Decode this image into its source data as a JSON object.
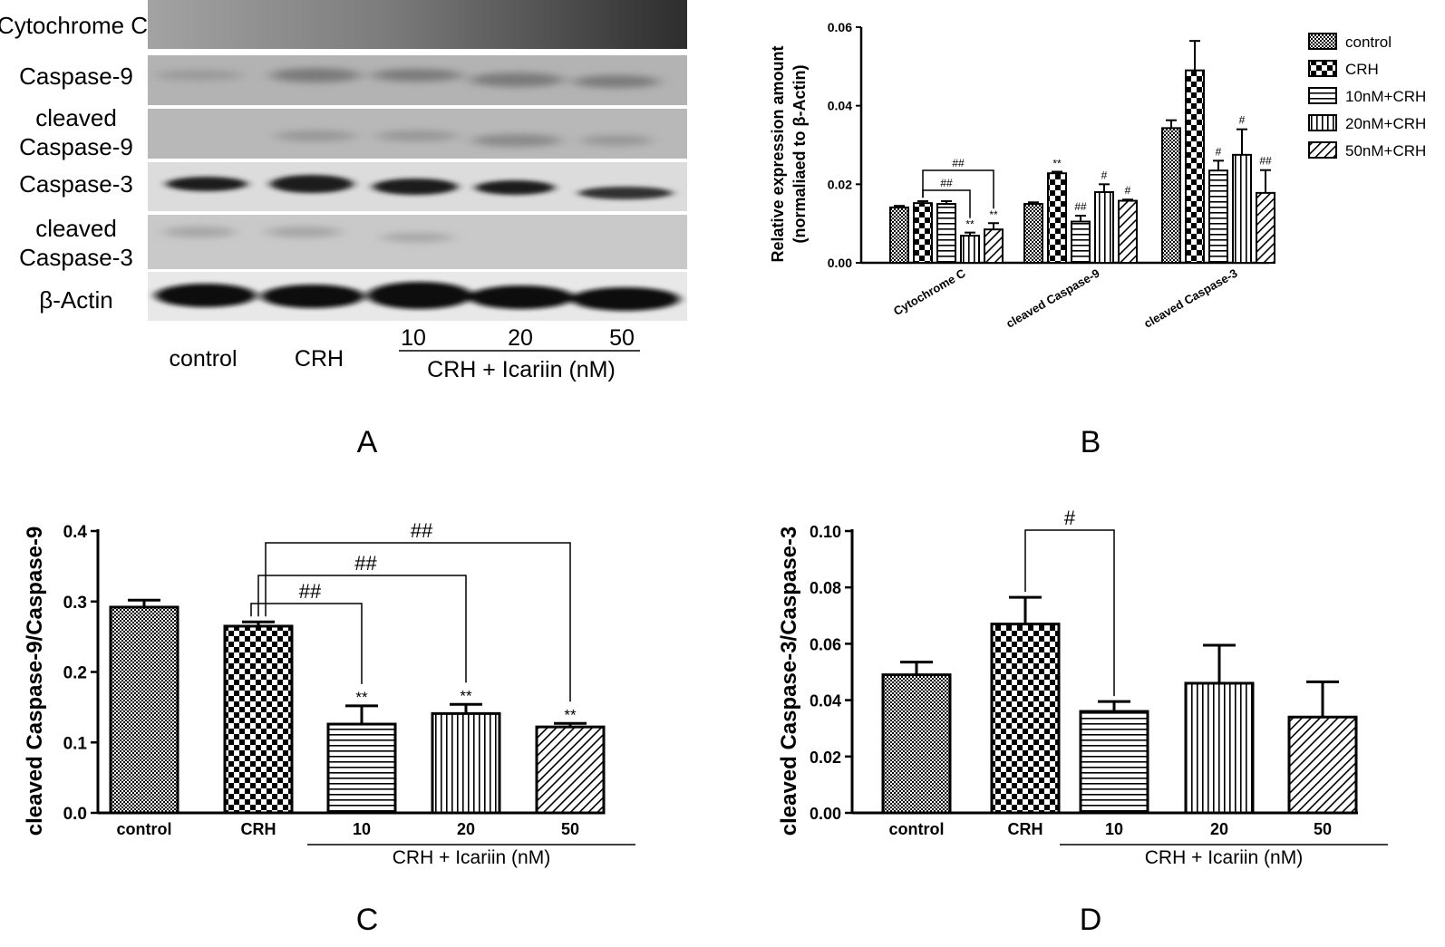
{
  "panel_letters": {
    "a": "A",
    "b": "B",
    "c": "C",
    "d": "D"
  },
  "blot": {
    "rows": [
      {
        "label_lines": [
          "Cytochrome C"
        ]
      },
      {
        "label_lines": [
          "Caspase-9"
        ]
      },
      {
        "label_lines": [
          "cleaved",
          "Caspase-9"
        ]
      },
      {
        "label_lines": [
          "Caspase-3"
        ]
      },
      {
        "label_lines": [
          "cleaved",
          "Caspase-3"
        ]
      },
      {
        "label_lines": [
          "β-Actin"
        ]
      }
    ],
    "lanes": [
      "control",
      "CRH",
      "10",
      "20",
      "50"
    ],
    "treatment_label": "CRH + Icariin (nM)"
  },
  "chart_data": [
    {
      "panel": "B",
      "type": "bar",
      "ylabel_lines": [
        "Relative expression amount",
        "(normaliaed to β-Actin)"
      ],
      "ylim": [
        0,
        0.06
      ],
      "yticks": [
        "0.00",
        "0.02",
        "0.04",
        "0.06"
      ],
      "categories": [
        "Cytochrome C",
        "cleaved Caspase-9",
        "cleaved Caspase-3"
      ],
      "series": [
        {
          "name": "control",
          "pattern": "fine-check",
          "values": [
            0.0141,
            0.015,
            0.0343
          ],
          "errors": [
            0.0004,
            0.0004,
            0.002
          ]
        },
        {
          "name": "CRH",
          "pattern": "coarse-check",
          "values": [
            0.0152,
            0.0228,
            0.049
          ],
          "errors": [
            0.0005,
            0.0004,
            0.0075
          ]
        },
        {
          "name": "10nM+CRH",
          "pattern": "hstripe",
          "values": [
            0.015,
            0.0105,
            0.0235
          ],
          "errors": [
            0.0007,
            0.0015,
            0.0025
          ]
        },
        {
          "name": "20nM+CRH",
          "pattern": "vstripe",
          "values": [
            0.0069,
            0.018,
            0.0275
          ],
          "errors": [
            0.0008,
            0.002,
            0.0065
          ]
        },
        {
          "name": "50nM+CRH",
          "pattern": "diag",
          "values": [
            0.0085,
            0.0158,
            0.0178
          ],
          "errors": [
            0.0016,
            0.0003,
            0.0058
          ]
        }
      ],
      "annotations": {
        "asterisks": [
          "**",
          "**",
          "**"
        ],
        "hashes": [
          "##",
          "##",
          "##",
          "#",
          "#",
          "#",
          "#",
          "##"
        ]
      }
    },
    {
      "panel": "C",
      "type": "bar",
      "ylabel": "cleaved Caspase-9/Caspase-9",
      "ylim": [
        0,
        0.4
      ],
      "yticks": [
        "0.0",
        "0.1",
        "0.2",
        "0.3",
        "0.4"
      ],
      "categories": [
        "control",
        "CRH",
        "10",
        "20",
        "50"
      ],
      "patterns": [
        "fine-check",
        "coarse-check",
        "hstripe",
        "vstripe",
        "diag"
      ],
      "values": [
        0.292,
        0.265,
        0.126,
        0.141,
        0.122
      ],
      "errors": [
        0.01,
        0.006,
        0.026,
        0.013,
        0.005
      ],
      "asterisks": [
        "",
        "",
        "**",
        "**",
        "**"
      ],
      "brackets": [
        {
          "label": "##",
          "from": 1,
          "to": 2
        },
        {
          "label": "##",
          "from": 1,
          "to": 3
        },
        {
          "label": "##",
          "from": 1,
          "to": 4
        }
      ],
      "xgroup_label": "CRH + Icariin (nM)"
    },
    {
      "panel": "D",
      "type": "bar",
      "ylabel": "cleaved Caspase-3/Caspase-3",
      "ylim": [
        0,
        0.1
      ],
      "yticks": [
        "0.00",
        "0.02",
        "0.04",
        "0.06",
        "0.08",
        "0.10"
      ],
      "categories": [
        "control",
        "CRH",
        "10",
        "20",
        "50"
      ],
      "patterns": [
        "fine-check",
        "coarse-check",
        "hstripe",
        "vstripe",
        "diag"
      ],
      "values": [
        0.049,
        0.067,
        0.036,
        0.046,
        0.034
      ],
      "errors": [
        0.0045,
        0.0095,
        0.0035,
        0.0135,
        0.0125
      ],
      "asterisks": [
        "",
        "",
        "",
        "",
        ""
      ],
      "brackets": [
        {
          "label": "#",
          "from": 1,
          "to": 2
        }
      ],
      "xgroup_label": "CRH + Icariin (nM)"
    }
  ]
}
